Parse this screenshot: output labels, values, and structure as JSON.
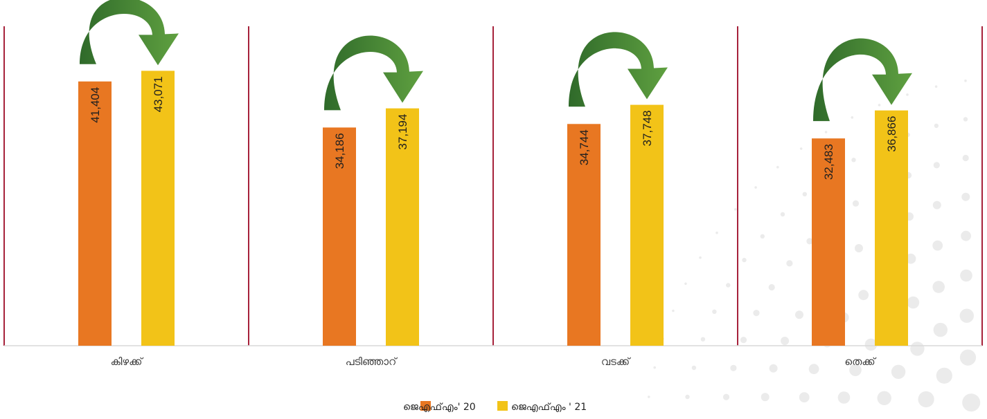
{
  "chart_data": {
    "type": "bar",
    "categories": [
      "കിഴക്ക്",
      "പടിഞ്ഞാറ്",
      "വടക്ക്",
      "തെക്ക്"
    ],
    "series": [
      {
        "name": "ജെഎഫ്എം' 20",
        "color": "#E87722",
        "values": [
          41404,
          34186,
          34744,
          32483
        ],
        "labels": [
          "41,404",
          "34,186",
          "34,744",
          "32,483"
        ]
      },
      {
        "name": "ജെഎഫ്എം ' 21",
        "color": "#F2C318",
        "values": [
          43071,
          37194,
          37748,
          36866
        ],
        "labels": [
          "43,071",
          "37,194",
          "37,748",
          "36,866"
        ]
      }
    ],
    "ylim": [
      0,
      52000
    ],
    "grid": false,
    "legend_position": "bottom-center",
    "divider_color": "#A6213A",
    "arrow_color": "#4E8C35",
    "arrow_icon": "curved-arrow-icon"
  }
}
